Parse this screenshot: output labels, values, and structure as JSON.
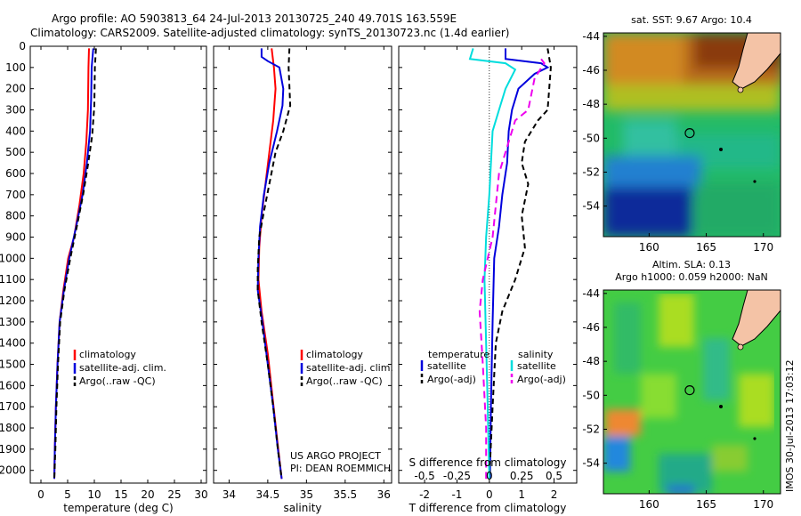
{
  "header": {
    "line1": "Argo profile: AO 5903813_64 24-Jul-2013 20130725_240 49.701S 163.559E",
    "line2": "Climatology: CARS2009. Satellite-adjusted climatology: synTS_20130723.nc (1.4d earlier)"
  },
  "colors": {
    "climatology": "#ff0000",
    "satellite": "#0000dd",
    "argo": "#000000",
    "sal_satellite": "#00dddd",
    "sal_argo": "#ee00ee"
  },
  "chart_data": [
    {
      "type": "line",
      "panel": "temperature",
      "xlabel": "temperature (deg C)",
      "ylabel": "",
      "xlim": [
        -2,
        31
      ],
      "ylim": [
        2060,
        0
      ],
      "xticks": [
        0,
        5,
        10,
        15,
        20,
        25,
        30
      ],
      "yticks": [
        0,
        100,
        200,
        300,
        400,
        500,
        600,
        700,
        800,
        900,
        1000,
        1100,
        1200,
        1300,
        1400,
        1500,
        1600,
        1700,
        1800,
        1900,
        2000
      ],
      "series": [
        {
          "name": "climatology",
          "color": "#ff0000",
          "dash": "",
          "points": [
            [
              9.0,
              10
            ],
            [
              8.9,
              100
            ],
            [
              8.8,
              300
            ],
            [
              8.5,
              450
            ],
            [
              8.0,
              600
            ],
            [
              7.2,
              750
            ],
            [
              6.2,
              900
            ],
            [
              5.1,
              1000
            ],
            [
              4.2,
              1150
            ],
            [
              3.5,
              1300
            ],
            [
              3.1,
              1500
            ],
            [
              2.8,
              1700
            ],
            [
              2.6,
              1900
            ],
            [
              2.5,
              2040
            ]
          ]
        },
        {
          "name": "satellite-adj. clim.",
          "color": "#0000dd",
          "dash": "",
          "points": [
            [
              9.8,
              10
            ],
            [
              9.5,
              100
            ],
            [
              9.4,
              250
            ],
            [
              9.2,
              400
            ],
            [
              8.6,
              550
            ],
            [
              7.8,
              700
            ],
            [
              6.6,
              850
            ],
            [
              5.3,
              1000
            ],
            [
              4.3,
              1150
            ],
            [
              3.5,
              1300
            ],
            [
              3.1,
              1500
            ],
            [
              2.8,
              1700
            ],
            [
              2.6,
              1900
            ],
            [
              2.5,
              2040
            ]
          ]
        },
        {
          "name": "Argo(..raw -QC)",
          "color": "#000000",
          "dash": "6,4",
          "points": [
            [
              10.3,
              10
            ],
            [
              10.1,
              100
            ],
            [
              10.0,
              280
            ],
            [
              9.6,
              420
            ],
            [
              8.8,
              560
            ],
            [
              7.9,
              700
            ],
            [
              6.8,
              840
            ],
            [
              5.5,
              1000
            ],
            [
              4.4,
              1150
            ],
            [
              3.6,
              1300
            ],
            [
              3.2,
              1500
            ],
            [
              2.9,
              1700
            ],
            [
              2.7,
              1900
            ],
            [
              2.5,
              2040
            ]
          ]
        }
      ],
      "legend": [
        "climatology",
        "satellite-adj. clim.",
        "Argo(..raw -QC)"
      ]
    },
    {
      "type": "line",
      "panel": "salinity",
      "xlabel": "salinity",
      "ylabel": "",
      "xlim": [
        33.8,
        36.1
      ],
      "ylim": [
        2060,
        0
      ],
      "xticks": [
        34,
        34.5,
        35,
        35.5,
        36
      ],
      "series": [
        {
          "name": "climatology",
          "color": "#ff0000",
          "dash": "",
          "points": [
            [
              34.55,
              10
            ],
            [
              34.58,
              100
            ],
            [
              34.6,
              200
            ],
            [
              34.57,
              350
            ],
            [
              34.52,
              500
            ],
            [
              34.47,
              650
            ],
            [
              34.42,
              800
            ],
            [
              34.39,
              950
            ],
            [
              34.38,
              1100
            ],
            [
              34.42,
              1250
            ],
            [
              34.5,
              1450
            ],
            [
              34.56,
              1650
            ],
            [
              34.62,
              1850
            ],
            [
              34.68,
              2040
            ]
          ]
        },
        {
          "name": "satellite-adj. clim.",
          "color": "#0000dd",
          "dash": "",
          "points": [
            [
              34.42,
              10
            ],
            [
              34.42,
              50
            ],
            [
              34.5,
              70
            ],
            [
              34.65,
              100
            ],
            [
              34.7,
              200
            ],
            [
              34.69,
              280
            ],
            [
              34.62,
              400
            ],
            [
              34.52,
              550
            ],
            [
              34.45,
              700
            ],
            [
              34.4,
              850
            ],
            [
              34.38,
              1000
            ],
            [
              34.37,
              1150
            ],
            [
              34.43,
              1300
            ],
            [
              34.5,
              1500
            ],
            [
              34.57,
              1700
            ],
            [
              34.63,
              1900
            ],
            [
              34.68,
              2040
            ]
          ]
        },
        {
          "name": "Argo(..raw -QC)",
          "color": "#000000",
          "dash": "6,4",
          "points": [
            [
              34.78,
              10
            ],
            [
              34.77,
              100
            ],
            [
              34.79,
              280
            ],
            [
              34.7,
              400
            ],
            [
              34.6,
              500
            ],
            [
              34.52,
              650
            ],
            [
              34.45,
              780
            ],
            [
              34.39,
              900
            ],
            [
              34.37,
              1050
            ],
            [
              34.37,
              1150
            ],
            [
              34.42,
              1300
            ],
            [
              34.5,
              1500
            ],
            [
              34.57,
              1700
            ],
            [
              34.63,
              1900
            ],
            [
              34.68,
              2040
            ]
          ]
        }
      ],
      "legend": [
        "climatology",
        "satellite-adj. clim.",
        "Argo(..raw -QC)"
      ],
      "annotation": [
        "US ARGO PROJECT",
        "PI: DEAN ROEMMICH"
      ]
    },
    {
      "type": "line",
      "panel": "difference",
      "xlabel": "T difference from climatology",
      "xlabel_top": "S difference from climatology",
      "xlim": [
        -2.8,
        2.7
      ],
      "ylim": [
        2060,
        0
      ],
      "xticks": [
        -2,
        -1,
        0,
        1,
        2
      ],
      "sticks": [
        [
          "-0.5",
          -2.0
        ],
        [
          "-0.25",
          -1.0
        ],
        [
          "0",
          0
        ],
        [
          "0.25",
          1.0
        ],
        [
          "0.5",
          2.0
        ]
      ],
      "series": [
        {
          "name": "temperature satellite",
          "color": "#0000dd",
          "dash": "",
          "points": [
            [
              0.5,
              10
            ],
            [
              0.5,
              60
            ],
            [
              1.6,
              80
            ],
            [
              1.8,
              100
            ],
            [
              1.4,
              130
            ],
            [
              0.9,
              200
            ],
            [
              0.7,
              300
            ],
            [
              0.6,
              400
            ],
            [
              0.55,
              550
            ],
            [
              0.4,
              700
            ],
            [
              0.3,
              850
            ],
            [
              0.15,
              1000
            ],
            [
              0.1,
              1300
            ],
            [
              0.05,
              1700
            ],
            [
              0.02,
              2040
            ]
          ]
        },
        {
          "name": "temperature Argo(-adj)",
          "color": "#000000",
          "dash": "6,4",
          "points": [
            [
              1.8,
              10
            ],
            [
              1.9,
              100
            ],
            [
              1.8,
              300
            ],
            [
              1.5,
              350
            ],
            [
              1.1,
              450
            ],
            [
              1.0,
              550
            ],
            [
              1.2,
              650
            ],
            [
              1.0,
              800
            ],
            [
              1.1,
              950
            ],
            [
              0.8,
              1100
            ],
            [
              0.4,
              1250
            ],
            [
              0.2,
              1400
            ],
            [
              0.1,
              1700
            ],
            [
              0.0,
              2040
            ]
          ]
        },
        {
          "name": "salinity satellite",
          "color": "#00dddd",
          "dash": "",
          "points": [
            [
              -0.5,
              10
            ],
            [
              -0.6,
              60
            ],
            [
              0.5,
              80
            ],
            [
              0.8,
              110
            ],
            [
              0.5,
              200
            ],
            [
              0.3,
              300
            ],
            [
              0.1,
              400
            ],
            [
              0.0,
              700
            ],
            [
              -0.1,
              900
            ],
            [
              -0.15,
              1100
            ],
            [
              -0.1,
              1400
            ],
            [
              -0.05,
              1700
            ],
            [
              0.0,
              2040
            ]
          ]
        },
        {
          "name": "salinity Argo(-adj)",
          "color": "#ee00ee",
          "dash": "8,5",
          "points": [
            [
              1.6,
              60
            ],
            [
              1.7,
              80
            ],
            [
              1.4,
              150
            ],
            [
              1.2,
              300
            ],
            [
              0.8,
              350
            ],
            [
              0.6,
              450
            ],
            [
              0.3,
              600
            ],
            [
              0.2,
              750
            ],
            [
              0.1,
              900
            ],
            [
              -0.2,
              1100
            ],
            [
              -0.3,
              1250
            ],
            [
              -0.2,
              1500
            ],
            [
              -0.1,
              1800
            ],
            [
              -0.1,
              2040
            ]
          ]
        }
      ],
      "legend_headers": [
        "temperature",
        "salinity"
      ],
      "legend_left": [
        "satellite",
        "Argo(-adj)"
      ],
      "legend_right": [
        "satellite",
        "Argo(-adj)"
      ]
    },
    {
      "type": "heatmap",
      "panel": "map_sst",
      "title": "sat. SST: 9.67 Argo: 10.4",
      "xticks": [
        160,
        165,
        170
      ],
      "yticks": [
        -44,
        -46,
        -48,
        -50,
        -52,
        -54
      ],
      "xlim": [
        156,
        171.5
      ],
      "ylim": [
        -55.8,
        -43.8
      ],
      "marker": [
        163.55,
        -49.7
      ]
    },
    {
      "type": "heatmap",
      "panel": "map_sla",
      "title": "Altim. SLA: 0.13",
      "subtitle": "Argo h1000: 0.059 h2000: NaN",
      "xticks": [
        160,
        165,
        170
      ],
      "yticks": [
        -44,
        -46,
        -48,
        -50,
        -52,
        -54
      ],
      "xlim": [
        156,
        171.5
      ],
      "ylim": [
        -55.8,
        -43.8
      ],
      "marker": [
        163.55,
        -49.7
      ]
    }
  ],
  "footer": {
    "stamp": "IMOS 30-Jul-2013 17:03:12"
  }
}
